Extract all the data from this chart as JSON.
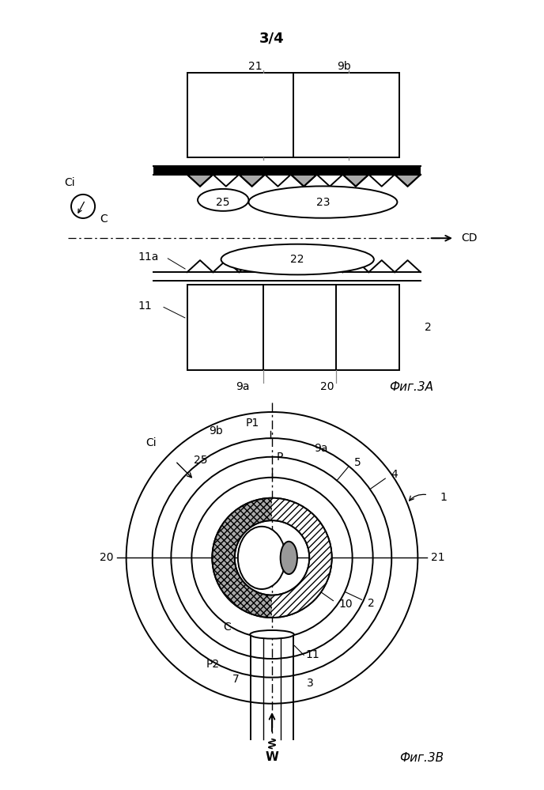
{
  "page_label": "3/4",
  "fig3a_label": "Фиг.3A",
  "fig3b_label": "Фиг.3B",
  "bg_color": "#ffffff",
  "line_color": "#000000"
}
